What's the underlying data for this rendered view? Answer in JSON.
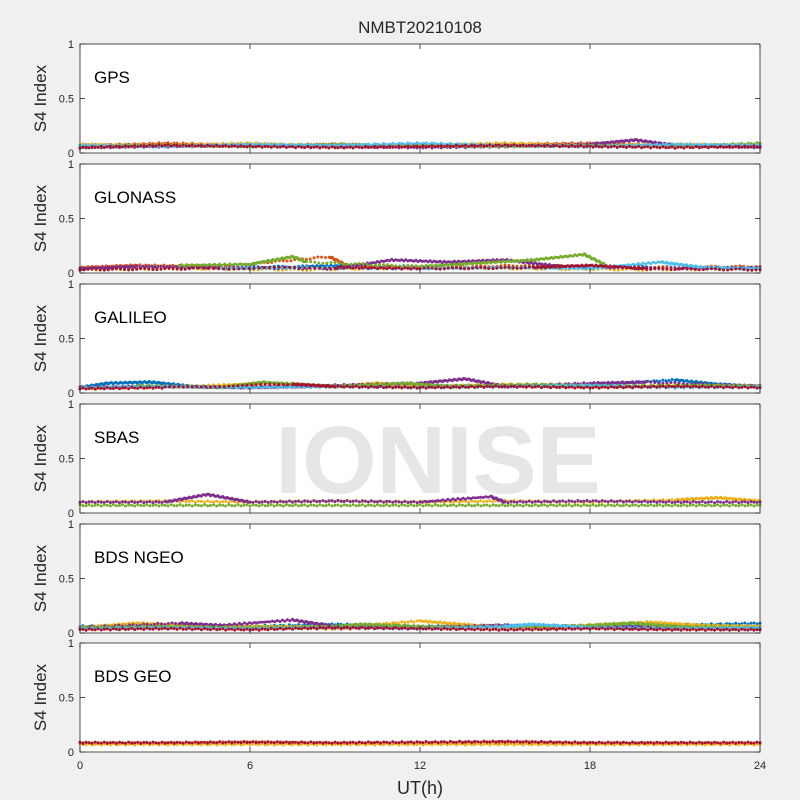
{
  "figure": {
    "title": "NMBT20210108",
    "xlabel": "UT(h)",
    "watermark": "IONISE"
  },
  "colors": {
    "figure_background": "#f0f0f0",
    "axes_background": "#ffffff",
    "axis_line": "#262626",
    "watermark": "#e6e6e6",
    "series_palette": [
      "#0072BD",
      "#D95319",
      "#EDB120",
      "#7E2F8E",
      "#77AC30",
      "#4DBEEE",
      "#A2142F"
    ]
  },
  "chart_data": [
    {
      "type": "scatter",
      "panel_label": "GPS",
      "ylabel": "S4 Index",
      "xlim": [
        0,
        24
      ],
      "ylim": [
        0,
        1
      ],
      "xticks": [
        0,
        6,
        12,
        18,
        24
      ],
      "yticks": [
        0,
        0.5,
        1
      ],
      "ytick_labels": [
        "0",
        "0.5",
        "1"
      ],
      "grid": false,
      "series": [
        {
          "color": "#0072BD",
          "x": [
            0,
            3,
            6,
            9,
            12,
            15,
            18,
            21,
            24
          ],
          "y": [
            0.07,
            0.08,
            0.06,
            0.07,
            0.08,
            0.07,
            0.06,
            0.07,
            0.06
          ]
        },
        {
          "color": "#D95319",
          "x": [
            0,
            3,
            6,
            9,
            12,
            15,
            18,
            21,
            24
          ],
          "y": [
            0.06,
            0.09,
            0.07,
            0.08,
            0.06,
            0.08,
            0.09,
            0.07,
            0.06
          ]
        },
        {
          "color": "#EDB120",
          "x": [
            0,
            3,
            6,
            9,
            12,
            15,
            18,
            21,
            24
          ],
          "y": [
            0.08,
            0.07,
            0.09,
            0.06,
            0.07,
            0.09,
            0.07,
            0.08,
            0.07
          ]
        },
        {
          "color": "#7E2F8E",
          "x": [
            0,
            3,
            6,
            9,
            12,
            15,
            18,
            19.6,
            21,
            24
          ],
          "y": [
            0.05,
            0.06,
            0.07,
            0.06,
            0.05,
            0.06,
            0.08,
            0.12,
            0.07,
            0.05
          ]
        },
        {
          "color": "#77AC30",
          "x": [
            0,
            3,
            6,
            9,
            12,
            15,
            18,
            21,
            24
          ],
          "y": [
            0.06,
            0.07,
            0.06,
            0.08,
            0.07,
            0.06,
            0.07,
            0.06,
            0.09
          ]
        },
        {
          "color": "#4DBEEE",
          "x": [
            0,
            3,
            6,
            9,
            12,
            15,
            18,
            21,
            24
          ],
          "y": [
            0.07,
            0.06,
            0.08,
            0.07,
            0.09,
            0.07,
            0.06,
            0.08,
            0.07
          ]
        },
        {
          "color": "#A2142F",
          "x": [
            0,
            3,
            6,
            9,
            12,
            15,
            18,
            21,
            24
          ],
          "y": [
            0.05,
            0.07,
            0.06,
            0.05,
            0.06,
            0.07,
            0.06,
            0.05,
            0.06
          ]
        }
      ]
    },
    {
      "type": "scatter",
      "panel_label": "GLONASS",
      "ylabel": "S4 Index",
      "xlim": [
        0,
        24
      ],
      "ylim": [
        0,
        1
      ],
      "xticks": [
        0,
        6,
        12,
        18,
        24
      ],
      "yticks": [
        0,
        0.5,
        1
      ],
      "ytick_labels": [
        "0",
        "0.5",
        "1"
      ],
      "grid": false,
      "series": [
        {
          "color": "#0072BD",
          "x": [
            0,
            4,
            8,
            10,
            14,
            18,
            22,
            24
          ],
          "y": [
            0.04,
            0.05,
            0.06,
            0.07,
            0.05,
            0.06,
            0.05,
            0.04
          ]
        },
        {
          "color": "#D95319",
          "x": [
            0,
            2,
            5,
            8.8,
            9.5,
            12,
            16,
            20,
            24
          ],
          "y": [
            0.05,
            0.07,
            0.06,
            0.15,
            0.06,
            0.05,
            0.07,
            0.05,
            0.06
          ]
        },
        {
          "color": "#EDB120",
          "x": [
            0,
            4,
            8,
            12,
            16,
            20,
            24
          ],
          "y": [
            0.03,
            0.04,
            0.03,
            0.05,
            0.04,
            0.03,
            0.04
          ]
        },
        {
          "color": "#7E2F8E",
          "x": [
            0,
            2,
            5,
            9,
            11,
            13,
            15,
            17,
            21,
            24
          ],
          "y": [
            0.04,
            0.06,
            0.05,
            0.04,
            0.12,
            0.1,
            0.12,
            0.06,
            0.04,
            0.05
          ]
        },
        {
          "color": "#77AC30",
          "x": [
            3.5,
            6,
            7.5,
            8,
            12,
            14,
            16,
            17.8,
            18.5
          ],
          "y": [
            0.07,
            0.08,
            0.15,
            0.1,
            0.06,
            0.09,
            0.12,
            0.17,
            0.08
          ]
        },
        {
          "color": "#4DBEEE",
          "x": [
            5,
            8,
            12,
            15,
            18,
            20.5,
            22,
            24
          ],
          "y": [
            0.04,
            0.05,
            0.04,
            0.05,
            0.04,
            0.1,
            0.05,
            0.04
          ]
        },
        {
          "color": "#A2142F",
          "x": [
            0,
            4,
            9,
            12,
            16,
            18,
            20,
            24
          ],
          "y": [
            0.03,
            0.04,
            0.05,
            0.04,
            0.05,
            0.07,
            0.04,
            0.03
          ]
        }
      ]
    },
    {
      "type": "scatter",
      "panel_label": "GALILEO",
      "ylabel": "S4 Index",
      "xlim": [
        0,
        24
      ],
      "ylim": [
        0,
        1
      ],
      "xticks": [
        0,
        6,
        12,
        18,
        24
      ],
      "yticks": [
        0,
        0.5,
        1
      ],
      "ytick_labels": [
        "0",
        "0.5",
        "1"
      ],
      "grid": false,
      "series": [
        {
          "color": "#0072BD",
          "x": [
            0,
            1,
            2.5,
            4,
            6,
            9,
            12,
            15,
            18,
            21,
            22.5,
            24
          ],
          "y": [
            0.05,
            0.09,
            0.1,
            0.06,
            0.05,
            0.06,
            0.07,
            0.06,
            0.07,
            0.12,
            0.08,
            0.06
          ]
        },
        {
          "color": "#D95319",
          "x": [
            0,
            3,
            6,
            9,
            12,
            15,
            18,
            21,
            24
          ],
          "y": [
            0.05,
            0.06,
            0.05,
            0.06,
            0.05,
            0.06,
            0.05,
            0.06,
            0.07
          ]
        },
        {
          "color": "#EDB120",
          "x": [
            0,
            4,
            6.5,
            9,
            10.5,
            12,
            15,
            18,
            21,
            24
          ],
          "y": [
            0.04,
            0.06,
            0.09,
            0.06,
            0.09,
            0.06,
            0.08,
            0.06,
            0.07,
            0.06
          ]
        },
        {
          "color": "#7E2F8E",
          "x": [
            0,
            3,
            6,
            9,
            12,
            13.6,
            15,
            18,
            20,
            24
          ],
          "y": [
            0.05,
            0.06,
            0.05,
            0.07,
            0.09,
            0.13,
            0.06,
            0.09,
            0.1,
            0.06
          ]
        },
        {
          "color": "#77AC30",
          "x": [
            2,
            5,
            6.5,
            9,
            11.5,
            13,
            16,
            19,
            22,
            24
          ],
          "y": [
            0.07,
            0.05,
            0.1,
            0.06,
            0.09,
            0.06,
            0.08,
            0.06,
            0.07,
            0.06
          ]
        },
        {
          "color": "#4DBEEE",
          "x": [
            0,
            3,
            6,
            9,
            12,
            15,
            18,
            21,
            24
          ],
          "y": [
            0.05,
            0.06,
            0.05,
            0.06,
            0.05,
            0.06,
            0.07,
            0.05,
            0.06
          ]
        },
        {
          "color": "#A2142F",
          "x": [
            0,
            3,
            7.5,
            9,
            12,
            15,
            18,
            21,
            24
          ],
          "y": [
            0.04,
            0.05,
            0.08,
            0.06,
            0.05,
            0.06,
            0.05,
            0.06,
            0.05
          ]
        }
      ]
    },
    {
      "type": "scatter",
      "panel_label": "SBAS",
      "ylabel": "S4 Index",
      "xlim": [
        0,
        24
      ],
      "ylim": [
        0,
        1
      ],
      "xticks": [
        0,
        6,
        12,
        18,
        24
      ],
      "yticks": [
        0,
        0.5,
        1
      ],
      "ytick_labels": [
        "0",
        "0.5",
        "1"
      ],
      "grid": false,
      "series": [
        {
          "color": "#EDB120",
          "x": [
            0,
            3,
            6,
            9,
            12,
            15,
            18,
            21,
            22.5,
            24
          ],
          "y": [
            0.1,
            0.11,
            0.1,
            0.11,
            0.1,
            0.11,
            0.1,
            0.12,
            0.14,
            0.11
          ]
        },
        {
          "color": "#7E2F8E",
          "x": [
            0,
            3,
            4.5,
            6,
            9,
            12,
            14.5,
            15,
            18,
            21,
            24
          ],
          "y": [
            0.1,
            0.1,
            0.17,
            0.1,
            0.11,
            0.1,
            0.15,
            0.1,
            0.11,
            0.1,
            0.1
          ]
        },
        {
          "color": "#77AC30",
          "x": [
            0,
            3,
            6,
            9,
            12,
            15,
            18,
            21,
            24
          ],
          "y": [
            0.07,
            0.07,
            0.07,
            0.07,
            0.07,
            0.07,
            0.07,
            0.07,
            0.07
          ]
        }
      ]
    },
    {
      "type": "scatter",
      "panel_label": "BDS NGEO",
      "ylabel": "S4 Index",
      "xlim": [
        0,
        24
      ],
      "ylim": [
        0,
        1
      ],
      "xticks": [
        0,
        6,
        12,
        18,
        24
      ],
      "yticks": [
        0,
        0.5,
        1
      ],
      "ytick_labels": [
        "0",
        "0.5",
        "1"
      ],
      "grid": false,
      "series": [
        {
          "color": "#0072BD",
          "x": [
            0,
            3,
            6,
            9,
            12,
            15,
            18,
            21,
            24
          ],
          "y": [
            0.06,
            0.07,
            0.06,
            0.08,
            0.06,
            0.07,
            0.06,
            0.07,
            0.09
          ]
        },
        {
          "color": "#D95319",
          "x": [
            0,
            3,
            6,
            9,
            12,
            15,
            18,
            21,
            24
          ],
          "y": [
            0.04,
            0.06,
            0.05,
            0.04,
            0.05,
            0.06,
            0.05,
            0.04,
            0.05
          ]
        },
        {
          "color": "#EDB120",
          "x": [
            0,
            2,
            4,
            7,
            9,
            12,
            14,
            17,
            20,
            22,
            24
          ],
          "y": [
            0.05,
            0.09,
            0.07,
            0.06,
            0.05,
            0.11,
            0.07,
            0.06,
            0.1,
            0.07,
            0.06
          ]
        },
        {
          "color": "#7E2F8E",
          "x": [
            0,
            3.5,
            5,
            7.5,
            9,
            12,
            15,
            18,
            21,
            24
          ],
          "y": [
            0.05,
            0.09,
            0.07,
            0.12,
            0.06,
            0.05,
            0.07,
            0.06,
            0.05,
            0.04
          ]
        },
        {
          "color": "#77AC30",
          "x": [
            0,
            3,
            6,
            9,
            10,
            12,
            15,
            18,
            19.5,
            21,
            24
          ],
          "y": [
            0.05,
            0.06,
            0.05,
            0.06,
            0.08,
            0.06,
            0.05,
            0.07,
            0.09,
            0.06,
            0.05
          ]
        },
        {
          "color": "#4DBEEE",
          "x": [
            0,
            3,
            6,
            9,
            12,
            15,
            16,
            18,
            21,
            24
          ],
          "y": [
            0.04,
            0.05,
            0.04,
            0.05,
            0.04,
            0.06,
            0.08,
            0.05,
            0.04,
            0.05
          ]
        },
        {
          "color": "#A2142F",
          "x": [
            0,
            3,
            6,
            9,
            12,
            15,
            18,
            21,
            24
          ],
          "y": [
            0.03,
            0.04,
            0.03,
            0.05,
            0.04,
            0.03,
            0.04,
            0.03,
            0.03
          ]
        }
      ]
    },
    {
      "type": "scatter",
      "panel_label": "BDS GEO",
      "ylabel": "S4 Index",
      "xlim": [
        0,
        24
      ],
      "ylim": [
        0,
        1
      ],
      "xticks": [
        0,
        6,
        12,
        18,
        24
      ],
      "yticks": [
        0,
        0.5,
        1
      ],
      "ytick_labels": [
        "0",
        "0.5",
        "1"
      ],
      "grid": false,
      "series": [
        {
          "color": "#D95319",
          "x": [
            0,
            3,
            6,
            9,
            12,
            15,
            18,
            21,
            24
          ],
          "y": [
            0.08,
            0.08,
            0.09,
            0.08,
            0.08,
            0.09,
            0.08,
            0.08,
            0.08
          ]
        },
        {
          "color": "#EDB120",
          "x": [
            0,
            3,
            6,
            9,
            12,
            15,
            18,
            21,
            24
          ],
          "y": [
            0.07,
            0.07,
            0.07,
            0.07,
            0.07,
            0.07,
            0.07,
            0.07,
            0.07
          ]
        },
        {
          "color": "#A2142F",
          "x": [
            0,
            3,
            6,
            9,
            12,
            15,
            18,
            21,
            24
          ],
          "y": [
            0.085,
            0.085,
            0.09,
            0.085,
            0.09,
            0.095,
            0.085,
            0.085,
            0.085
          ]
        }
      ]
    }
  ]
}
